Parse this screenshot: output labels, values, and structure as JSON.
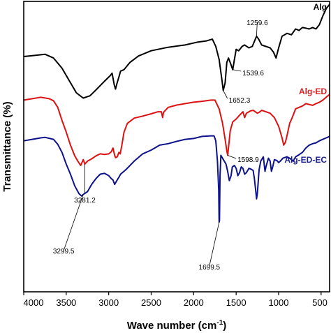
{
  "chart_data": {
    "type": "line",
    "xlabel": "Wave number (cm",
    "xlabel_sup": "-1",
    "xlabel_end": ")",
    "ylabel": "Transmittance (%)",
    "xlim": [
      4000,
      400
    ],
    "ylim": [
      0,
      100
    ],
    "xaxis_reversed": true,
    "yticks_shown": false,
    "grid": false,
    "x_ticks": [
      "4000",
      "3500",
      "3000",
      "2500",
      "2000",
      "1500",
      "1000",
      "500"
    ],
    "x_tick_values": [
      4000,
      3500,
      3000,
      2500,
      2000,
      1500,
      1000,
      500
    ],
    "series": [
      {
        "name": "Alg",
        "color": "#000000",
        "label_color": "#000000",
        "points": [
          [
            4000,
            81
          ],
          [
            3900,
            81.3
          ],
          [
            3750,
            81.8
          ],
          [
            3650,
            80.5
          ],
          [
            3550,
            77
          ],
          [
            3450,
            72
          ],
          [
            3380,
            68.5
          ],
          [
            3300,
            66.7
          ],
          [
            3220,
            67.5
          ],
          [
            3150,
            69.5
          ],
          [
            3050,
            72.5
          ],
          [
            2980,
            74.5
          ],
          [
            2960,
            75.3
          ],
          [
            2935,
            71.3
          ],
          [
            2920,
            69.8
          ],
          [
            2905,
            71.5
          ],
          [
            2880,
            74
          ],
          [
            2860,
            76
          ],
          [
            2820,
            76.5
          ],
          [
            2750,
            79
          ],
          [
            2650,
            81.2
          ],
          [
            2500,
            83
          ],
          [
            2300,
            84.2
          ],
          [
            2100,
            85
          ],
          [
            1950,
            86
          ],
          [
            1850,
            86.4
          ],
          [
            1780,
            87
          ],
          [
            1740,
            84.5
          ],
          [
            1700,
            80
          ],
          [
            1670,
            73.5
          ],
          [
            1652,
            69.3
          ],
          [
            1630,
            72
          ],
          [
            1610,
            79
          ],
          [
            1590,
            80.5
          ],
          [
            1565,
            78.5
          ],
          [
            1540,
            76.5
          ],
          [
            1520,
            80
          ],
          [
            1500,
            83.5
          ],
          [
            1470,
            83
          ],
          [
            1430,
            84.5
          ],
          [
            1400,
            85
          ],
          [
            1350,
            84
          ],
          [
            1310,
            84.5
          ],
          [
            1260,
            88
          ],
          [
            1235,
            87
          ],
          [
            1200,
            85
          ],
          [
            1150,
            84.5
          ],
          [
            1100,
            84
          ],
          [
            1060,
            82.5
          ],
          [
            1030,
            80.5
          ],
          [
            1000,
            84
          ],
          [
            960,
            88
          ],
          [
            900,
            89
          ],
          [
            850,
            88.5
          ],
          [
            800,
            90.5
          ],
          [
            760,
            90
          ],
          [
            720,
            91
          ],
          [
            680,
            90.8
          ],
          [
            640,
            90.5
          ],
          [
            600,
            91
          ],
          [
            560,
            90.5
          ],
          [
            520,
            92
          ],
          [
            480,
            95
          ],
          [
            440,
            97.5
          ],
          [
            400,
            99
          ]
        ]
      },
      {
        "name": "Alg-ED",
        "color": "#dd1111",
        "label_color": "#e02020",
        "points": [
          [
            4000,
            66
          ],
          [
            3900,
            66.5
          ],
          [
            3800,
            67
          ],
          [
            3700,
            66.5
          ],
          [
            3650,
            65.8
          ],
          [
            3600,
            63.5
          ],
          [
            3550,
            59
          ],
          [
            3500,
            55
          ],
          [
            3450,
            50.5
          ],
          [
            3400,
            46.8
          ],
          [
            3360,
            44.8
          ],
          [
            3330,
            43.5
          ],
          [
            3300,
            45.5
          ],
          [
            3281,
            44
          ],
          [
            3250,
            45
          ],
          [
            3200,
            45.8
          ],
          [
            3150,
            46.8
          ],
          [
            3100,
            47.5
          ],
          [
            3050,
            47.3
          ],
          [
            3000,
            47.5
          ],
          [
            2970,
            48.2
          ],
          [
            2950,
            49.5
          ],
          [
            2930,
            47
          ],
          [
            2920,
            46.2
          ],
          [
            2900,
            46.5
          ],
          [
            2880,
            48
          ],
          [
            2865,
            47.5
          ],
          [
            2845,
            50.5
          ],
          [
            2820,
            55
          ],
          [
            2780,
            58
          ],
          [
            2700,
            59.8
          ],
          [
            2600,
            60.5
          ],
          [
            2500,
            61.3
          ],
          [
            2420,
            62
          ],
          [
            2380,
            62
          ],
          [
            2365,
            60
          ],
          [
            2355,
            61.8
          ],
          [
            2300,
            63.5
          ],
          [
            2200,
            64.3
          ],
          [
            2100,
            64.8
          ],
          [
            2000,
            65.3
          ],
          [
            1900,
            65.6
          ],
          [
            1800,
            66
          ],
          [
            1750,
            66
          ],
          [
            1700,
            63
          ],
          [
            1660,
            58
          ],
          [
            1630,
            52.5
          ],
          [
            1610,
            48.5
          ],
          [
            1599,
            47
          ],
          [
            1585,
            51
          ],
          [
            1570,
            55.5
          ],
          [
            1540,
            58.5
          ],
          [
            1500,
            59.5
          ],
          [
            1460,
            60.8
          ],
          [
            1420,
            62
          ],
          [
            1400,
            60
          ],
          [
            1380,
            61.5
          ],
          [
            1330,
            62.3
          ],
          [
            1300,
            62.5
          ],
          [
            1250,
            61.5
          ],
          [
            1220,
            62
          ],
          [
            1200,
            62.5
          ],
          [
            1150,
            62
          ],
          [
            1100,
            61.5
          ],
          [
            1050,
            60
          ],
          [
            1000,
            57
          ],
          [
            960,
            53
          ],
          [
            940,
            50.5
          ],
          [
            920,
            51.5
          ],
          [
            900,
            54
          ],
          [
            870,
            58
          ],
          [
            840,
            60
          ],
          [
            800,
            63
          ],
          [
            760,
            63.5
          ],
          [
            720,
            64
          ],
          [
            680,
            64.8
          ],
          [
            640,
            64.5
          ],
          [
            600,
            64.2
          ],
          [
            560,
            64.8
          ],
          [
            520,
            65.3
          ],
          [
            480,
            66
          ],
          [
            440,
            67
          ],
          [
            400,
            68
          ]
        ]
      },
      {
        "name": "Alg-ED-EC",
        "color": "#0d128c",
        "label_color": "#1a2090",
        "points": [
          [
            4000,
            52
          ],
          [
            3900,
            52.5
          ],
          [
            3800,
            53
          ],
          [
            3750,
            53.2
          ],
          [
            3650,
            52.5
          ],
          [
            3600,
            50.8
          ],
          [
            3550,
            48
          ],
          [
            3500,
            44
          ],
          [
            3450,
            40.5
          ],
          [
            3400,
            36.5
          ],
          [
            3350,
            33.8
          ],
          [
            3320,
            33
          ],
          [
            3300,
            33.5
          ],
          [
            3250,
            34.5
          ],
          [
            3200,
            37
          ],
          [
            3150,
            39
          ],
          [
            3100,
            40.5
          ],
          [
            3050,
            40.8
          ],
          [
            3000,
            40
          ],
          [
            2970,
            39
          ],
          [
            2950,
            38.5
          ],
          [
            2930,
            37
          ],
          [
            2910,
            38
          ],
          [
            2880,
            39.5
          ],
          [
            2860,
            40.5
          ],
          [
            2800,
            42
          ],
          [
            2700,
            45
          ],
          [
            2600,
            47.5
          ],
          [
            2500,
            48.8
          ],
          [
            2400,
            50.5
          ],
          [
            2300,
            51
          ],
          [
            2200,
            51.8
          ],
          [
            2100,
            52.5
          ],
          [
            2000,
            52.8
          ],
          [
            1900,
            53.5
          ],
          [
            1800,
            53.7
          ],
          [
            1760,
            53.7
          ],
          [
            1740,
            52
          ],
          [
            1720,
            45
          ],
          [
            1705,
            35
          ],
          [
            1700,
            24
          ],
          [
            1696,
            24.5
          ],
          [
            1690,
            40
          ],
          [
            1680,
            47
          ],
          [
            1660,
            46
          ],
          [
            1640,
            45
          ],
          [
            1620,
            44
          ],
          [
            1600,
            41.5
          ],
          [
            1580,
            38.3
          ],
          [
            1560,
            40
          ],
          [
            1545,
            43
          ],
          [
            1520,
            43.5
          ],
          [
            1500,
            42.5
          ],
          [
            1480,
            40
          ],
          [
            1460,
            41
          ],
          [
            1440,
            43
          ],
          [
            1420,
            42.5
          ],
          [
            1400,
            40.5
          ],
          [
            1380,
            41
          ],
          [
            1350,
            42.5
          ],
          [
            1330,
            42.3
          ],
          [
            1300,
            41.8
          ],
          [
            1285,
            39
          ],
          [
            1270,
            35
          ],
          [
            1260,
            32
          ],
          [
            1250,
            34
          ],
          [
            1230,
            42
          ],
          [
            1210,
            45
          ],
          [
            1180,
            46.5
          ],
          [
            1170,
            44
          ],
          [
            1160,
            41.5
          ],
          [
            1150,
            43
          ],
          [
            1120,
            46
          ],
          [
            1100,
            45
          ],
          [
            1085,
            41.5
          ],
          [
            1070,
            43
          ],
          [
            1050,
            45.5
          ],
          [
            1020,
            45.2
          ],
          [
            1000,
            44.5
          ],
          [
            980,
            45
          ],
          [
            950,
            46
          ],
          [
            900,
            46.5
          ],
          [
            860,
            45.8
          ],
          [
            830,
            45
          ],
          [
            800,
            46.5
          ],
          [
            760,
            47.2
          ],
          [
            720,
            48
          ],
          [
            680,
            49.5
          ],
          [
            640,
            50.5
          ],
          [
            600,
            51
          ],
          [
            560,
            51.3
          ],
          [
            520,
            52
          ],
          [
            480,
            52.5
          ],
          [
            440,
            53
          ],
          [
            400,
            53.5
          ]
        ]
      }
    ],
    "annotations": [
      {
        "text": "1259.6",
        "series": "Alg",
        "x": 1260,
        "y": 88
      },
      {
        "text": "1539.6",
        "series": "Alg",
        "x": 1540,
        "y": 76.5
      },
      {
        "text": "1652.3",
        "series": "Alg",
        "x": 1652,
        "y": 69.3
      },
      {
        "text": "1598.9",
        "series": "Alg-ED",
        "x": 1599,
        "y": 47
      },
      {
        "text": "3281.2",
        "series": "Alg-ED",
        "x": 3281,
        "y": 44
      },
      {
        "text": "3299.5",
        "series": "Alg-ED-EC",
        "x": 3300,
        "y": 33.5
      },
      {
        "text": "1699.5",
        "series": "Alg-ED-EC",
        "x": 1700,
        "y": 24
      }
    ]
  }
}
